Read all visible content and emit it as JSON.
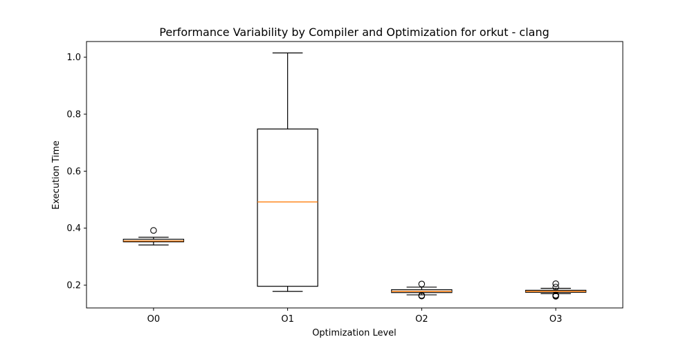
{
  "chart_data": {
    "type": "boxplot",
    "title": "Performance Variability by Compiler and Optimization for orkut - clang",
    "xlabel": "Optimization Level",
    "ylabel": "Execution Time",
    "categories": [
      "O0",
      "O1",
      "O2",
      "O3"
    ],
    "ylim": [
      0.12,
      1.055
    ],
    "yticks": [
      0.2,
      0.4,
      0.6,
      0.8,
      1.0
    ],
    "ytick_labels": [
      "0.2",
      "0.4",
      "0.6",
      "0.8",
      "1.0"
    ],
    "grid": false,
    "boxes": [
      {
        "category": "O0",
        "whisker_low": 0.341,
        "q1": 0.352,
        "median": 0.355,
        "q3": 0.361,
        "whisker_high": 0.368,
        "outliers": [
          0.392
        ]
      },
      {
        "category": "O1",
        "whisker_low": 0.178,
        "q1": 0.196,
        "median": 0.492,
        "q3": 0.748,
        "whisker_high": 1.015,
        "outliers": []
      },
      {
        "category": "O2",
        "whisker_low": 0.166,
        "q1": 0.174,
        "median": 0.178,
        "q3": 0.184,
        "whisker_high": 0.193,
        "outliers": [
          0.204,
          0.162,
          0.164
        ]
      },
      {
        "category": "O3",
        "whisker_low": 0.17,
        "q1": 0.175,
        "median": 0.178,
        "q3": 0.182,
        "whisker_high": 0.189,
        "outliers": [
          0.205,
          0.193,
          0.161,
          0.163,
          0.165
        ]
      }
    ],
    "colors": {
      "box": "#000000",
      "median": "#ff7f0e",
      "outlier": "#000000"
    }
  }
}
